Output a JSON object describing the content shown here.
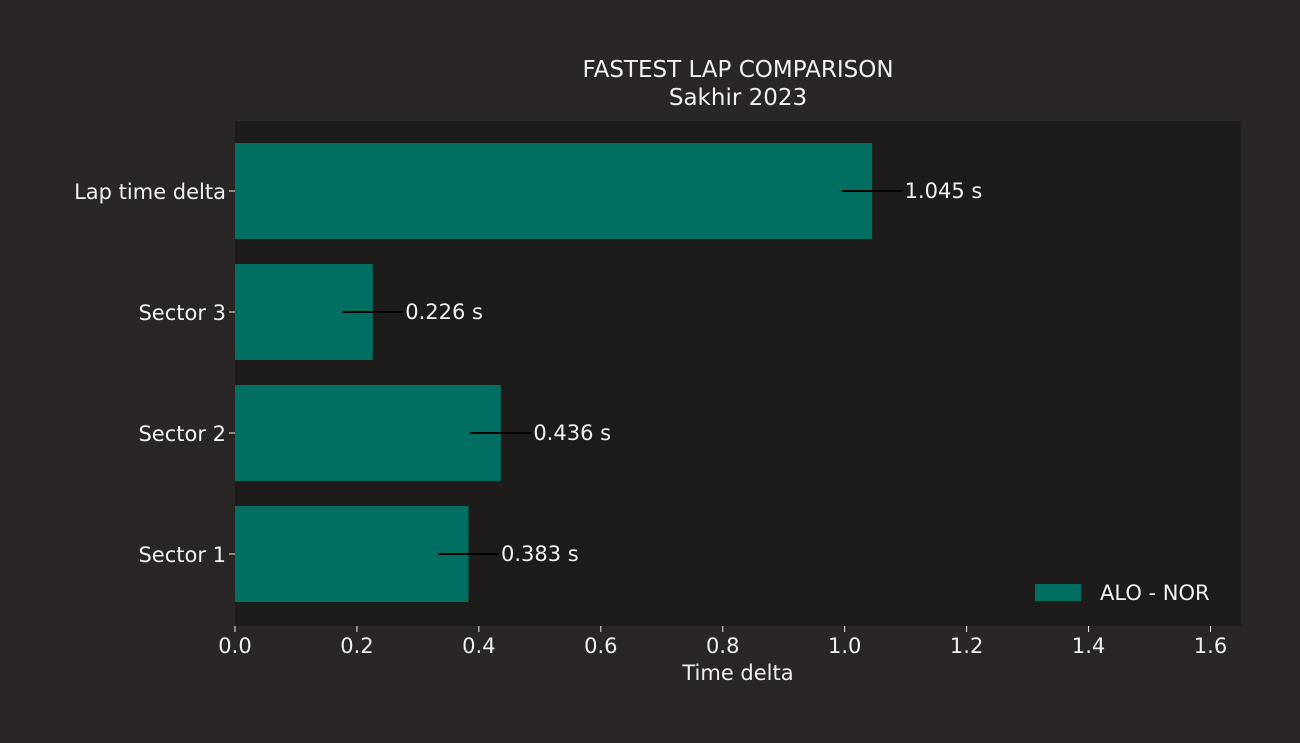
{
  "chart_data": {
    "type": "bar",
    "orientation": "horizontal",
    "title": "FASTEST LAP COMPARISON",
    "subtitle": "Sakhir 2023",
    "xlabel": "Time delta",
    "ylabel": "",
    "xlim": [
      0,
      1.65
    ],
    "x_ticks": [
      "0.0",
      "0.2",
      "0.4",
      "0.6",
      "0.8",
      "1.0",
      "1.2",
      "1.4",
      "1.6"
    ],
    "x_tick_values": [
      0,
      0.2,
      0.4,
      0.6,
      0.8,
      1.0,
      1.2,
      1.4,
      1.6
    ],
    "categories": [
      "Lap time delta",
      "Sector 3",
      "Sector 2",
      "Sector 1"
    ],
    "series": [
      {
        "name": "ALO - NOR",
        "color": "#006f61",
        "values": [
          1.045,
          0.226,
          0.436,
          0.383
        ],
        "error": [
          0.05,
          0.05,
          0.05,
          0.05
        ]
      }
    ],
    "data_labels": [
      "1.045 s",
      "0.226 s",
      "0.436 s",
      "0.383 s"
    ],
    "legend_position": "bottom-right",
    "grid": false,
    "colors": {
      "figure_background": "#292625",
      "plot_background": "#1e1c1b",
      "text": "#f1f1f1",
      "error_bar": "#000000"
    }
  }
}
